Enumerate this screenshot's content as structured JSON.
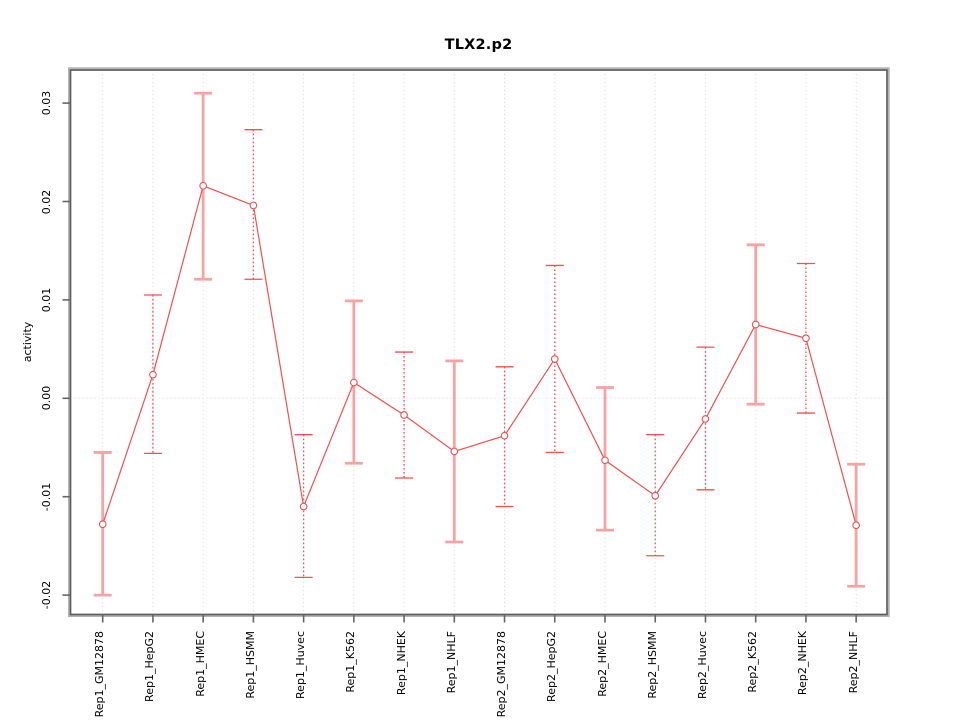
{
  "chart_data": {
    "type": "line",
    "title": "TLX2.p2",
    "xlabel": "",
    "ylabel": "activity",
    "ylim": [
      -0.022,
      0.0335
    ],
    "yticks": [
      0.03,
      0.02,
      0.01,
      0.0,
      -0.01,
      -0.02
    ],
    "ytick_labels": [
      "0.03",
      "0.02",
      "0.01",
      "0.00",
      "-0.01",
      "-0.02"
    ],
    "grid": {
      "vertical_per_category": true,
      "zero_line_dotted": true,
      "other_horizontal": false
    },
    "legend": "none",
    "marker": "open-circle",
    "categories": [
      "Rep1_GM12878",
      "Rep1_HepG2",
      "Rep1_HMEC",
      "Rep1_HSMM",
      "Rep1_Huvec",
      "Rep1_K562",
      "Rep1_NHEK",
      "Rep1_NHLF",
      "Rep2_GM12878",
      "Rep2_HepG2",
      "Rep2_HMEC",
      "Rep2_HSMM",
      "Rep2_Huvec",
      "Rep2_K562",
      "Rep2_NHEK",
      "Rep2_NHLF"
    ],
    "points": [
      {
        "label": "Rep1_GM12878",
        "value": -0.0128,
        "lower": -0.02,
        "upper": -0.0055,
        "bar_style": "solid"
      },
      {
        "label": "Rep1_HepG2",
        "value": 0.0024,
        "lower": -0.0056,
        "upper": 0.0105,
        "bar_style": "dotted"
      },
      {
        "label": "Rep1_HMEC",
        "value": 0.0216,
        "lower": 0.0121,
        "upper": 0.031,
        "bar_style": "solid"
      },
      {
        "label": "Rep1_HSMM",
        "value": 0.0196,
        "lower": 0.0121,
        "upper": 0.0273,
        "bar_style": "dotted"
      },
      {
        "label": "Rep1_Huvec",
        "value": -0.011,
        "lower": -0.0182,
        "upper": -0.0037,
        "bar_style": "dotted"
      },
      {
        "label": "Rep1_K562",
        "value": 0.0016,
        "lower": -0.0066,
        "upper": 0.0099,
        "bar_style": "solid"
      },
      {
        "label": "Rep1_NHEK",
        "value": -0.0017,
        "lower": -0.0081,
        "upper": 0.0047,
        "bar_style": "dotted"
      },
      {
        "label": "Rep1_NHLF",
        "value": -0.0054,
        "lower": -0.0146,
        "upper": 0.0038,
        "bar_style": "solid"
      },
      {
        "label": "Rep2_GM12878",
        "value": -0.0038,
        "lower": -0.011,
        "upper": 0.0032,
        "bar_style": "dotted"
      },
      {
        "label": "Rep2_HepG2",
        "value": 0.004,
        "lower": -0.0055,
        "upper": 0.0135,
        "bar_style": "dotted"
      },
      {
        "label": "Rep2_HMEC",
        "value": -0.0063,
        "lower": -0.0134,
        "upper": 0.0011,
        "bar_style": "solid"
      },
      {
        "label": "Rep2_HSMM",
        "value": -0.0099,
        "lower": -0.016,
        "upper": -0.0037,
        "bar_style": "dotted"
      },
      {
        "label": "Rep2_Huvec",
        "value": -0.0021,
        "lower": -0.0093,
        "upper": 0.0052,
        "bar_style": "dotted"
      },
      {
        "label": "Rep2_K562",
        "value": 0.0075,
        "lower": -0.0006,
        "upper": 0.0156,
        "bar_style": "solid"
      },
      {
        "label": "Rep2_NHEK",
        "value": 0.0061,
        "lower": -0.0015,
        "upper": 0.0137,
        "bar_style": "dotted"
      },
      {
        "label": "Rep2_NHLF",
        "value": -0.0129,
        "lower": -0.0191,
        "upper": -0.0067,
        "bar_style": "solid"
      }
    ],
    "colors": {
      "line": "#f15151",
      "marker_stroke": "#f15151",
      "solid_bar": "#f8a3a3",
      "dotted_bar": "#f15151",
      "gridline": "#dcdcdc",
      "zero_line": "#d9d9d9",
      "frame_dark": "#5c5c5c",
      "frame_light": "#b3b3b3",
      "tick": "#666666",
      "text": "#000000",
      "background": "#ffffff"
    }
  }
}
